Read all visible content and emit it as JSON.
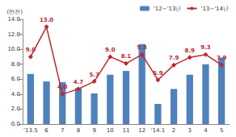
{
  "chart_data": {
    "type": "bar",
    "y_label": "(만건)",
    "categories": [
      "'13.5",
      "6",
      "7",
      "8",
      "9",
      "10",
      "11",
      "12",
      "'14.1",
      "2",
      "3",
      "4",
      "5"
    ],
    "series": [
      {
        "name": "'12~'13년",
        "type": "bar",
        "color": "#4f81bd",
        "values": [
          6.7,
          5.7,
          5.6,
          4.8,
          4.1,
          6.6,
          7.1,
          10.7,
          2.7,
          4.7,
          6.6,
          8.0,
          8.9
        ]
      },
      {
        "name": "'13~'14년",
        "type": "line",
        "color": "#c0272d",
        "marker": "diamond",
        "data_labels": true,
        "values": [
          9.0,
          13.0,
          4.0,
          4.7,
          5.7,
          9.0,
          8.1,
          9.3,
          5.9,
          7.9,
          8.9,
          9.3,
          7.9
        ],
        "value_labels": [
          "9.0",
          "13.0",
          "4.0",
          "4.7",
          "5.7",
          "9.0",
          "8.1",
          "9.3",
          "5.9",
          "7.9",
          "8.9",
          "9.3",
          "7.9"
        ]
      }
    ],
    "ylim": [
      0,
      14
    ],
    "yticks": [
      {
        "value": 0,
        "label": "0.0"
      },
      {
        "value": 2,
        "label": "2.0"
      },
      {
        "value": 4,
        "label": "4.0"
      },
      {
        "value": 6,
        "label": "6.0"
      },
      {
        "value": 8,
        "label": "8.0"
      },
      {
        "value": 10,
        "label": "10.0"
      },
      {
        "value": 12,
        "label": "12.0"
      },
      {
        "value": 14,
        "label": "14.0"
      }
    ],
    "grid": false,
    "legend": "top-right"
  }
}
